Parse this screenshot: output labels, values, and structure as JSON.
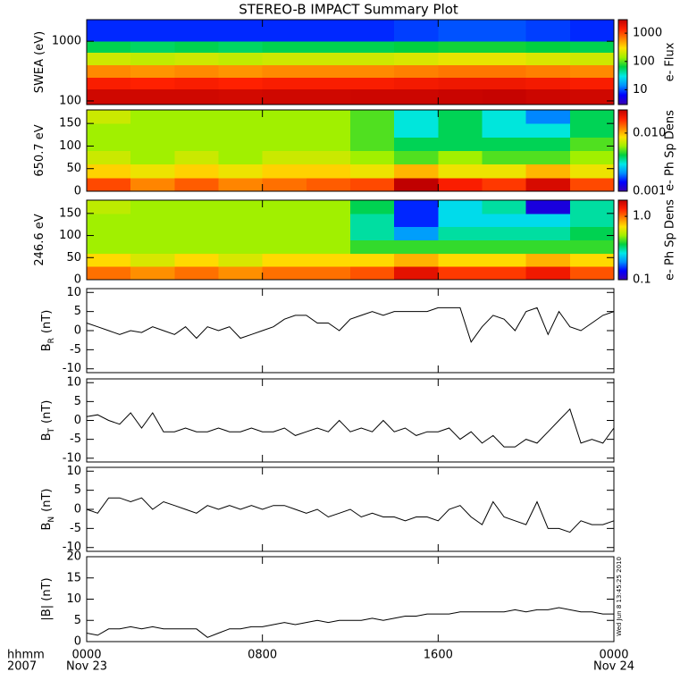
{
  "title": "STEREO-B IMPACT Summary Plot",
  "corner_labels": [
    "hhmm",
    "2007"
  ],
  "colormap": [
    "#3a00b0",
    "#0000ff",
    "#0090ff",
    "#00e8e8",
    "#00d040",
    "#a0f000",
    "#ffe000",
    "#ff8000",
    "#ff2000",
    "#c00000"
  ],
  "chart_data": [
    {
      "type": "heatmap",
      "ylabel": "SWEA (eV)",
      "ylog": true,
      "ylim": [
        87,
        2300
      ],
      "yticks": [
        100,
        1000
      ],
      "xlim": [
        0,
        24
      ],
      "xticks": [
        0,
        8,
        16,
        24
      ],
      "xbins": [
        0,
        2,
        4,
        6,
        8,
        10,
        12,
        14,
        16,
        18,
        20,
        22,
        24
      ],
      "ybins": [
        87,
        160,
        250,
        400,
        650,
        1000,
        2300
      ],
      "values": [
        [
          2500,
          2500,
          2500,
          2400,
          2500,
          2500,
          2600,
          2600,
          2700,
          2800,
          2600,
          2500
        ],
        [
          1500,
          1400,
          1500,
          1400,
          1500,
          1500,
          1500,
          1600,
          1700,
          1700,
          1600,
          1500
        ],
        [
          600,
          550,
          600,
          550,
          600,
          600,
          600,
          650,
          700,
          700,
          650,
          600
        ],
        [
          200,
          180,
          200,
          180,
          200,
          200,
          200,
          220,
          250,
          250,
          220,
          200
        ],
        [
          60,
          55,
          60,
          55,
          60,
          60,
          60,
          65,
          70,
          70,
          65,
          60
        ],
        [
          8,
          8,
          8,
          8,
          8,
          8,
          8,
          9,
          10,
          10,
          9,
          8
        ]
      ],
      "clim": [
        3,
        3000
      ],
      "clog": true,
      "cticks": [
        10,
        100,
        1000
      ],
      "clabel": "e- Flux"
    },
    {
      "type": "heatmap",
      "ylabel": "650.7 eV",
      "ylim": [
        0,
        180
      ],
      "yticks": [
        0,
        50,
        100,
        150
      ],
      "xlim": [
        0,
        24
      ],
      "xticks": [
        0,
        8,
        16,
        24
      ],
      "xbins": [
        0,
        2,
        4,
        6,
        8,
        10,
        12,
        14,
        16,
        18,
        20,
        22,
        24
      ],
      "ybins": [
        0,
        30,
        60,
        90,
        120,
        150,
        180
      ],
      "values": [
        [
          0.015,
          0.012,
          0.014,
          0.012,
          0.013,
          0.014,
          0.015,
          0.025,
          0.018,
          0.016,
          0.022,
          0.015
        ],
        [
          0.009,
          0.008,
          0.009,
          0.008,
          0.009,
          0.009,
          0.008,
          0.01,
          0.008,
          0.008,
          0.01,
          0.008
        ],
        [
          0.007,
          0.006,
          0.007,
          0.006,
          0.007,
          0.007,
          0.006,
          0.005,
          0.006,
          0.005,
          0.005,
          0.006
        ],
        [
          0.006,
          0.006,
          0.006,
          0.006,
          0.006,
          0.006,
          0.005,
          0.004,
          0.004,
          0.004,
          0.004,
          0.005
        ],
        [
          0.006,
          0.006,
          0.006,
          0.006,
          0.006,
          0.006,
          0.005,
          0.003,
          0.004,
          0.003,
          0.003,
          0.004
        ],
        [
          0.007,
          0.006,
          0.006,
          0.006,
          0.006,
          0.006,
          0.005,
          0.003,
          0.004,
          0.003,
          0.002,
          0.004
        ]
      ],
      "clim": [
        0.001,
        0.025
      ],
      "clog": true,
      "cticks": [
        0.001,
        {
          "value": 0.01,
          "label": "0.010"
        }
      ],
      "clabel": "e- Ph Sp Dens"
    },
    {
      "type": "heatmap",
      "ylabel": "246.6 eV",
      "ylim": [
        0,
        180
      ],
      "yticks": [
        0,
        50,
        100,
        150
      ],
      "xlim": [
        0,
        24
      ],
      "xticks": [
        0,
        8,
        16,
        24
      ],
      "xbins": [
        0,
        2,
        4,
        6,
        8,
        10,
        12,
        14,
        16,
        18,
        20,
        22,
        24
      ],
      "ybins": [
        0,
        30,
        60,
        90,
        120,
        150,
        180
      ],
      "values": [
        [
          1.0,
          0.9,
          1.0,
          0.9,
          1.0,
          1.0,
          1.1,
          1.5,
          1.2,
          1.2,
          1.4,
          1.1
        ],
        [
          0.7,
          0.6,
          0.7,
          0.6,
          0.7,
          0.7,
          0.7,
          0.8,
          0.7,
          0.7,
          0.8,
          0.7
        ],
        [
          0.5,
          0.5,
          0.5,
          0.5,
          0.5,
          0.5,
          0.4,
          0.4,
          0.4,
          0.4,
          0.4,
          0.4
        ],
        [
          0.5,
          0.5,
          0.5,
          0.5,
          0.5,
          0.5,
          0.3,
          0.2,
          0.3,
          0.3,
          0.3,
          0.35
        ],
        [
          0.5,
          0.5,
          0.5,
          0.5,
          0.5,
          0.5,
          0.3,
          0.15,
          0.25,
          0.25,
          0.25,
          0.3
        ],
        [
          0.55,
          0.5,
          0.5,
          0.5,
          0.5,
          0.5,
          0.35,
          0.15,
          0.25,
          0.3,
          0.12,
          0.3
        ]
      ],
      "clim": [
        0.1,
        1.8
      ],
      "clog": true,
      "cticks": [
        0.1,
        {
          "value": 1,
          "label": "1.0"
        }
      ],
      "clabel": "e- Ph Sp Dens"
    },
    {
      "type": "line",
      "ylabel": "B",
      "ylabel_sub": "R",
      "ylabel_unit": "(nT)",
      "color": "#000000",
      "ylim": [
        -11,
        11
      ],
      "yticks": [
        -10,
        -5,
        0,
        5,
        10
      ],
      "xlim": [
        0,
        24
      ],
      "xticks": [
        0,
        8,
        16,
        24
      ],
      "x": [
        0,
        0.5,
        1,
        1.5,
        2,
        2.5,
        3,
        3.5,
        4,
        4.5,
        5,
        5.5,
        6,
        6.5,
        7,
        7.5,
        8,
        8.5,
        9,
        9.5,
        10,
        10.5,
        11,
        11.5,
        12,
        12.5,
        13,
        13.5,
        14,
        14.5,
        15,
        15.5,
        16,
        16.5,
        17,
        17.5,
        18,
        18.5,
        19,
        19.5,
        20,
        20.5,
        21,
        21.5,
        22,
        22.5,
        23,
        23.5,
        24
      ],
      "values": [
        2,
        1,
        0,
        -1,
        0,
        -0.5,
        1,
        0,
        -1,
        1,
        -2,
        1,
        0,
        1,
        -2,
        -1,
        0,
        1,
        3,
        4,
        4,
        2,
        2,
        0,
        3,
        4,
        5,
        4,
        5,
        5,
        5,
        5,
        6,
        6,
        6,
        -3,
        1,
        4,
        3,
        0,
        5,
        6,
        -1,
        5,
        1,
        0,
        2,
        4,
        5
      ]
    },
    {
      "type": "line",
      "ylabel": "B",
      "ylabel_sub": "T",
      "ylabel_unit": "(nT)",
      "color": "#000000",
      "ylim": [
        -11,
        11
      ],
      "yticks": [
        -10,
        -5,
        0,
        5,
        10
      ],
      "xlim": [
        0,
        24
      ],
      "xticks": [
        0,
        8,
        16,
        24
      ],
      "x": [
        0,
        0.5,
        1,
        1.5,
        2,
        2.5,
        3,
        3.5,
        4,
        4.5,
        5,
        5.5,
        6,
        6.5,
        7,
        7.5,
        8,
        8.5,
        9,
        9.5,
        10,
        10.5,
        11,
        11.5,
        12,
        12.5,
        13,
        13.5,
        14,
        14.5,
        15,
        15.5,
        16,
        16.5,
        17,
        17.5,
        18,
        18.5,
        19,
        19.5,
        20,
        20.5,
        21,
        21.5,
        22,
        22.5,
        23,
        23.5,
        24
      ],
      "values": [
        1,
        1.5,
        0,
        -1,
        2,
        -2,
        2,
        -3,
        -3,
        -2,
        -3,
        -3,
        -2,
        -3,
        -3,
        -2,
        -3,
        -3,
        -2,
        -4,
        -3,
        -2,
        -3,
        0,
        -3,
        -2,
        -3,
        0,
        -3,
        -2,
        -4,
        -3,
        -3,
        -2,
        -5,
        -3,
        -6,
        -4,
        -7,
        -7,
        -5,
        -6,
        -3,
        0,
        3,
        -6,
        -5,
        -6,
        -2
      ]
    },
    {
      "type": "line",
      "ylabel": "B",
      "ylabel_sub": "N",
      "ylabel_unit": "(nT)",
      "color": "#000000",
      "ylim": [
        -11,
        11
      ],
      "yticks": [
        -10,
        -5,
        0,
        5,
        10
      ],
      "xlim": [
        0,
        24
      ],
      "xticks": [
        0,
        8,
        16,
        24
      ],
      "x": [
        0,
        0.5,
        1,
        1.5,
        2,
        2.5,
        3,
        3.5,
        4,
        4.5,
        5,
        5.5,
        6,
        6.5,
        7,
        7.5,
        8,
        8.5,
        9,
        9.5,
        10,
        10.5,
        11,
        11.5,
        12,
        12.5,
        13,
        13.5,
        14,
        14.5,
        15,
        15.5,
        16,
        16.5,
        17,
        17.5,
        18,
        18.5,
        19,
        19.5,
        20,
        20.5,
        21,
        21.5,
        22,
        22.5,
        23,
        23.5,
        24
      ],
      "values": [
        0,
        -1,
        3,
        3,
        2,
        3,
        0,
        2,
        1,
        0,
        -1,
        1,
        0,
        1,
        0,
        1,
        0,
        1,
        1,
        0,
        -1,
        0,
        -2,
        -1,
        0,
        -2,
        -1,
        -2,
        -2,
        -3,
        -2,
        -2,
        -3,
        0,
        1,
        -2,
        -4,
        2,
        -2,
        -3,
        -4,
        2,
        -5,
        -5,
        -6,
        -3,
        -4,
        -4,
        -3
      ]
    },
    {
      "type": "line",
      "ylabel": "|B| (nT)",
      "color": "#000000",
      "ylim": [
        0,
        20
      ],
      "yticks": [
        0,
        5,
        10,
        15,
        20
      ],
      "xlim": [
        0,
        24
      ],
      "xticks": [
        {
          "value": 0,
          "label": "0000"
        },
        {
          "value": 8,
          "label": "0800"
        },
        {
          "value": 16,
          "label": "1600"
        },
        {
          "value": 24,
          "label": "0000"
        }
      ],
      "xtick_dates": [
        "Nov 23",
        null,
        null,
        "Nov 24"
      ],
      "timestamp": "Wed Jun  8 13:45:25 2010",
      "x": [
        0,
        0.5,
        1,
        1.5,
        2,
        2.5,
        3,
        3.5,
        4,
        4.5,
        5,
        5.5,
        6,
        6.5,
        7,
        7.5,
        8,
        8.5,
        9,
        9.5,
        10,
        10.5,
        11,
        11.5,
        12,
        12.5,
        13,
        13.5,
        14,
        14.5,
        15,
        15.5,
        16,
        16.5,
        17,
        17.5,
        18,
        18.5,
        19,
        19.5,
        20,
        20.5,
        21,
        21.5,
        22,
        22.5,
        23,
        23.5,
        24
      ],
      "values": [
        2,
        1.5,
        3,
        3,
        3.5,
        3,
        3.5,
        3,
        3,
        3,
        3,
        1,
        2,
        3,
        3,
        3.5,
        3.5,
        4,
        4.5,
        4,
        4.5,
        5,
        4.5,
        5,
        5,
        5,
        5.5,
        5,
        5.5,
        6,
        6,
        6.5,
        6.5,
        6.5,
        7,
        7,
        7,
        7,
        7,
        7.5,
        7,
        7.5,
        7.5,
        8,
        7.5,
        7,
        7,
        6.5,
        6.5
      ]
    }
  ]
}
